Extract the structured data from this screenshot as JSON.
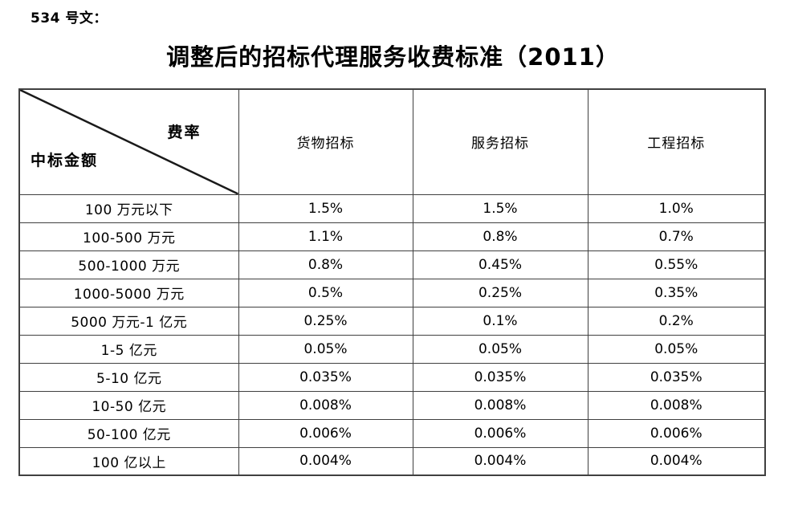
{
  "doc_number": "534 号文：",
  "title": "调整后的招标代理服务收费标准（2011）",
  "table": {
    "corner": {
      "top_right_label": "费率",
      "bottom_left_label": "中标金额"
    },
    "columns": [
      "货物招标",
      "服务招标",
      "工程招标"
    ],
    "rows": [
      {
        "label": "100 万元以下",
        "values": [
          "1.5%",
          "1.5%",
          "1.0%"
        ]
      },
      {
        "label": "100-500 万元",
        "values": [
          "1.1%",
          "0.8%",
          "0.7%"
        ]
      },
      {
        "label": "500-1000 万元",
        "values": [
          "0.8%",
          "0.45%",
          "0.55%"
        ]
      },
      {
        "label": "1000-5000 万元",
        "values": [
          "0.5%",
          "0.25%",
          "0.35%"
        ]
      },
      {
        "label": "5000 万元-1 亿元",
        "values": [
          "0.25%",
          "0.1%",
          "0.2%"
        ]
      },
      {
        "label": "1-5 亿元",
        "values": [
          "0.05%",
          "0.05%",
          "0.05%"
        ]
      },
      {
        "label": "5-10 亿元",
        "values": [
          "0.035%",
          "0.035%",
          "0.035%"
        ]
      },
      {
        "label": "10-50 亿元",
        "values": [
          "0.008%",
          "0.008%",
          "0.008%"
        ]
      },
      {
        "label": "50-100 亿元",
        "values": [
          "0.006%",
          "0.006%",
          "0.006%"
        ]
      },
      {
        "label": "100 亿以上",
        "values": [
          "0.004%",
          "0.004%",
          "0.004%"
        ]
      }
    ]
  },
  "colors": {
    "text": "#000000",
    "border": "#404040",
    "background": "#ffffff"
  }
}
